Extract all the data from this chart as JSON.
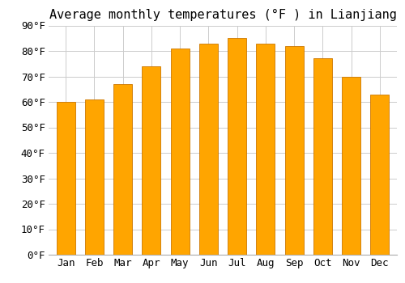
{
  "title": "Average monthly temperatures (°F ) in Lianjiang",
  "months": [
    "Jan",
    "Feb",
    "Mar",
    "Apr",
    "May",
    "Jun",
    "Jul",
    "Aug",
    "Sep",
    "Oct",
    "Nov",
    "Dec"
  ],
  "values": [
    60,
    61,
    67,
    74,
    81,
    83,
    85,
    83,
    82,
    77,
    70,
    63
  ],
  "bar_color": "#FFA500",
  "bar_edge_color": "#CC7700",
  "background_color": "#FFFFFF",
  "grid_color": "#CCCCCC",
  "ylim": [
    0,
    90
  ],
  "yticks": [
    0,
    10,
    20,
    30,
    40,
    50,
    60,
    70,
    80,
    90
  ],
  "title_fontsize": 11,
  "tick_fontsize": 9,
  "bar_width": 0.65
}
